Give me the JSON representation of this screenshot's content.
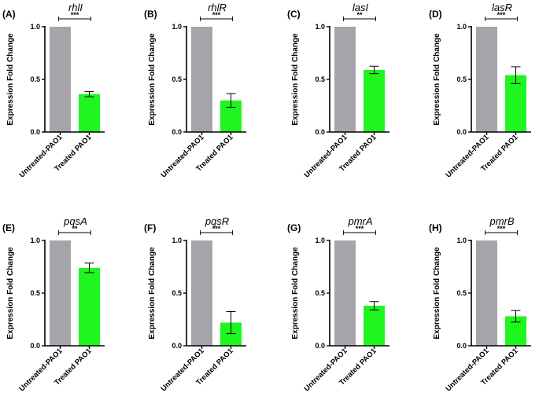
{
  "figure": {
    "panels": 8,
    "colors": {
      "untreated": "#a6a4aa",
      "treated": "#1ff51f",
      "axis": "#000000"
    }
  },
  "chart_data": [
    {
      "type": "bar",
      "panel_label": "(A)",
      "title": "rhlI",
      "ylabel": "Expression Fold Change",
      "categories": [
        "Untreated-PAO1",
        "Treated PAO1"
      ],
      "values": [
        1.0,
        0.36
      ],
      "error": [
        0,
        0.025
      ],
      "ylim": [
        0,
        1.0
      ],
      "yticks": [
        "0.0",
        "0.5",
        "1.0"
      ],
      "significance": "***"
    },
    {
      "type": "bar",
      "panel_label": "(B)",
      "title": "rhlR",
      "ylabel": "Expression Fold Change",
      "categories": [
        "Untreated-PAO1",
        "Treated PAO1"
      ],
      "values": [
        1.0,
        0.3
      ],
      "error": [
        0,
        0.065
      ],
      "ylim": [
        0,
        1.0
      ],
      "yticks": [
        "0.0",
        "0.5",
        "1.0"
      ],
      "significance": "***"
    },
    {
      "type": "bar",
      "panel_label": "(C)",
      "title": "lasI",
      "ylabel": "Expression Fold Change",
      "categories": [
        "Untreated-PAO1",
        "Treated PAO1"
      ],
      "values": [
        1.0,
        0.59
      ],
      "error": [
        0,
        0.035
      ],
      "ylim": [
        0,
        1.0
      ],
      "yticks": [
        "0.0",
        "0.5",
        "1.0"
      ],
      "significance": "**"
    },
    {
      "type": "bar",
      "panel_label": "(D)",
      "title": "lasR",
      "ylabel": "Expression Fold Change",
      "categories": [
        "Untreated-PAO1",
        "Treated PAO1"
      ],
      "values": [
        1.0,
        0.54
      ],
      "error": [
        0,
        0.08
      ],
      "ylim": [
        0,
        1.0
      ],
      "yticks": [
        "0.0",
        "0.5",
        "1.0"
      ],
      "significance": "***"
    },
    {
      "type": "bar",
      "panel_label": "(E)",
      "title": "pqsA",
      "ylabel": "Expression Fold Change",
      "categories": [
        "Untreated-PAO1",
        "Treated PAO1"
      ],
      "values": [
        1.0,
        0.74
      ],
      "error": [
        0,
        0.045
      ],
      "ylim": [
        0,
        1.0
      ],
      "yticks": [
        "0.0",
        "0.5",
        "1.0"
      ],
      "significance": "**"
    },
    {
      "type": "bar",
      "panel_label": "(F)",
      "title": "pqsR",
      "ylabel": "Expression Fold Change",
      "categories": [
        "Untreated-PAO1",
        "Treated PAO1"
      ],
      "values": [
        1.0,
        0.22
      ],
      "error": [
        0,
        0.105
      ],
      "ylim": [
        0,
        1.0
      ],
      "yticks": [
        "0.0",
        "0.5",
        "1.0"
      ],
      "significance": "***"
    },
    {
      "type": "bar",
      "panel_label": "(G)",
      "title": "pmrA",
      "ylabel": "Expression Fold Change",
      "categories": [
        "Untreated-PAO1",
        "Treated PAO1"
      ],
      "values": [
        1.0,
        0.38
      ],
      "error": [
        0,
        0.04
      ],
      "ylim": [
        0,
        1.0
      ],
      "yticks": [
        "0.0",
        "0.5",
        "1.0"
      ],
      "significance": "***"
    },
    {
      "type": "bar",
      "panel_label": "(H)",
      "title": "pmrB",
      "ylabel": "Expression Fold Change",
      "categories": [
        "Untreated-PAO1",
        "Treated PAO1"
      ],
      "values": [
        1.0,
        0.28
      ],
      "error": [
        0,
        0.055
      ],
      "ylim": [
        0,
        1.0
      ],
      "yticks": [
        "0.0",
        "0.5",
        "1.0"
      ],
      "significance": "***"
    }
  ]
}
